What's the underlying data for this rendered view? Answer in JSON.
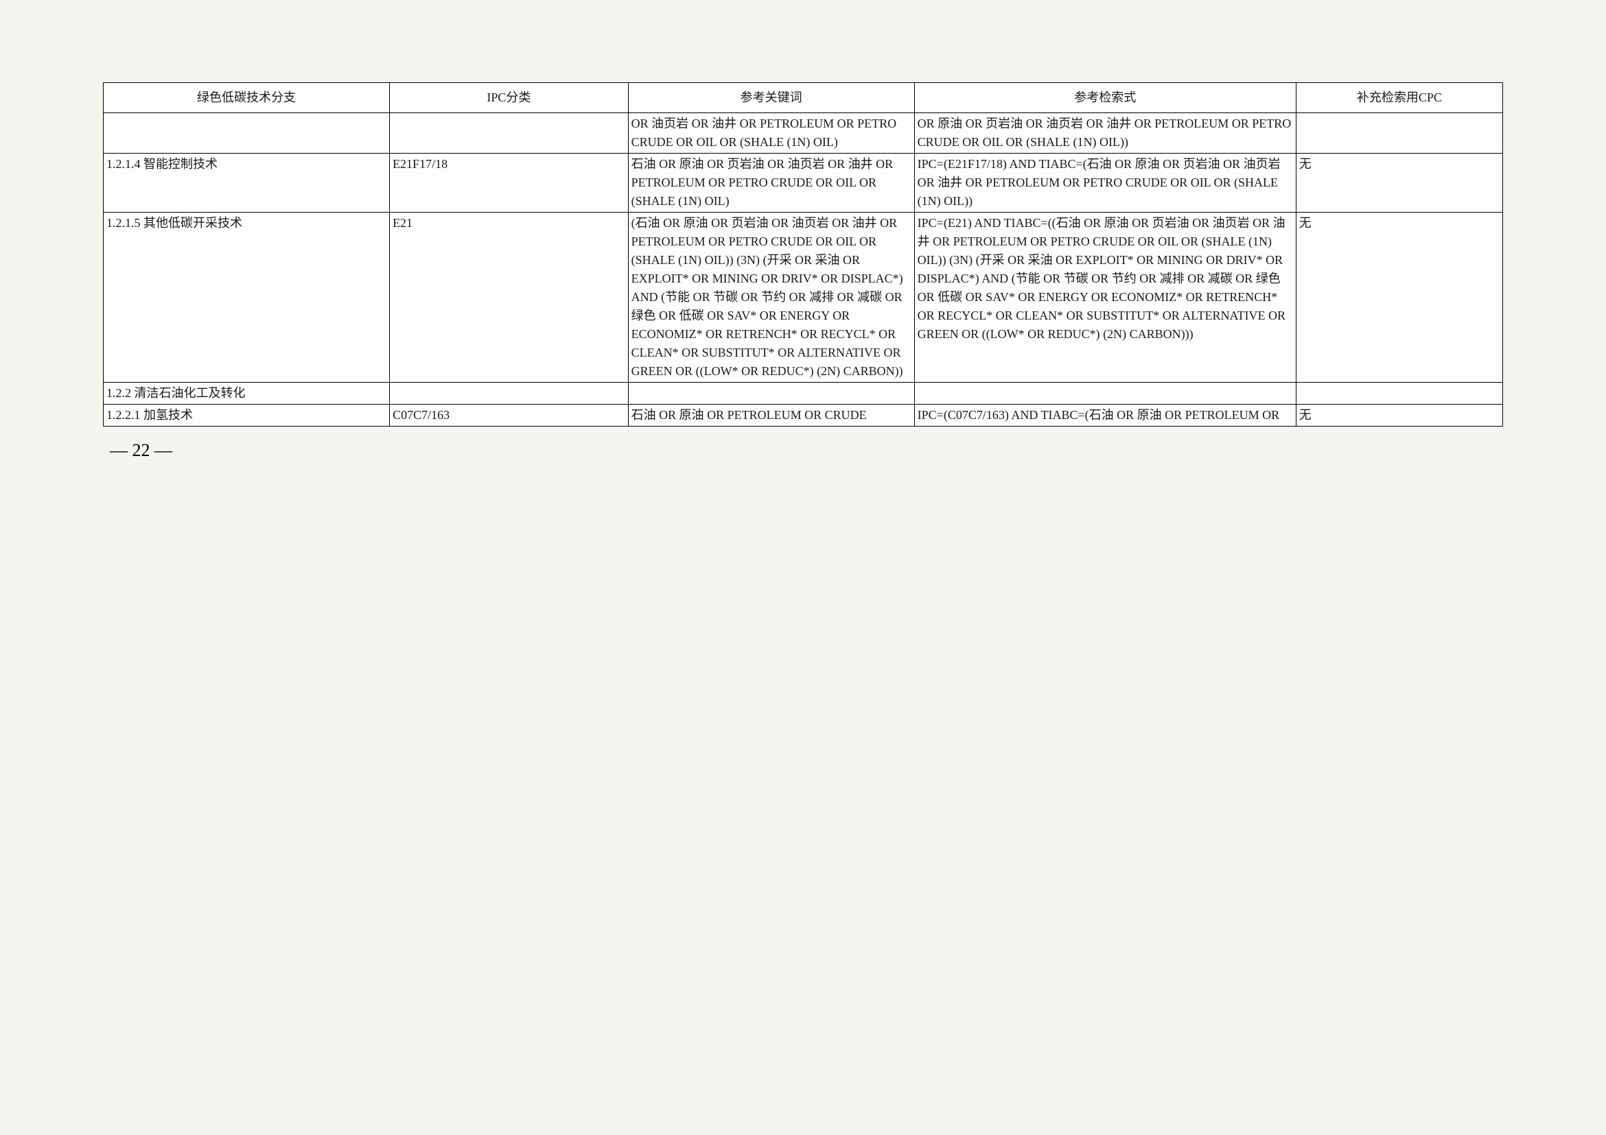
{
  "table": {
    "headers": [
      "绿色低碳技术分支",
      "IPC分类",
      "参考关键词",
      "参考检索式",
      "补充检索用CPC"
    ],
    "rows": [
      {
        "c1": "",
        "c2": "",
        "c3": "OR 油页岩 OR 油井 OR PETROLEUM OR PETRO CRUDE OR OIL OR (SHALE (1N) OIL)",
        "c4": "OR 原油 OR 页岩油 OR 油页岩 OR 油井 OR PETROLEUM OR PETRO CRUDE OR OIL OR (SHALE (1N) OIL))",
        "c5": ""
      },
      {
        "c1": "1.2.1.4  智能控制技术",
        "c2": "E21F17/18",
        "c3": "石油 OR 原油 OR 页岩油 OR 油页岩 OR 油井 OR PETROLEUM OR PETRO CRUDE OR OIL OR (SHALE (1N) OIL)",
        "c4": "IPC=(E21F17/18) AND TIABC=(石油 OR 原油 OR 页岩油 OR 油页岩 OR 油井 OR PETROLEUM OR PETRO CRUDE OR OIL OR (SHALE (1N) OIL))",
        "c5": "无"
      },
      {
        "c1": "1.2.1.5  其他低碳开采技术",
        "c2": "E21",
        "c3": "(石油 OR 原油 OR 页岩油 OR 油页岩 OR 油井 OR PETROLEUM OR PETRO CRUDE OR OIL OR (SHALE (1N) OIL)) (3N) (开采 OR 采油 OR EXPLOIT* OR MINING OR DRIV* OR DISPLAC*) AND (节能 OR 节碳 OR 节约 OR 减排 OR 减碳 OR 绿色 OR 低碳 OR SAV* OR ENERGY OR ECONOMIZ* OR RETRENCH* OR RECYCL* OR CLEAN* OR SUBSTITUT* OR ALTERNATIVE OR GREEN OR ((LOW* OR REDUC*) (2N) CARBON))",
        "c4": "IPC=(E21) AND TIABC=((石油 OR 原油 OR 页岩油 OR 油页岩 OR 油井 OR PETROLEUM OR PETRO CRUDE OR OIL OR (SHALE (1N) OIL)) (3N) (开采 OR 采油 OR EXPLOIT* OR MINING OR DRIV* OR DISPLAC*) AND (节能 OR 节碳 OR 节约 OR 减排 OR 减碳 OR 绿色 OR 低碳 OR SAV* OR ENERGY OR ECONOMIZ* OR RETRENCH* OR RECYCL* OR CLEAN* OR SUBSTITUT* OR ALTERNATIVE OR GREEN OR ((LOW* OR REDUC*) (2N) CARBON)))",
        "c5": "无"
      },
      {
        "c1": "1.2.2  清洁石油化工及转化",
        "c2": "",
        "c3": "",
        "c4": "",
        "c5": ""
      },
      {
        "c1": "1.2.2.1  加氢技术",
        "c2": "C07C7/163",
        "c3": "石油 OR 原油 OR PETROLEUM OR CRUDE",
        "c4": "IPC=(C07C7/163) AND TIABC=(石油 OR 原油 OR PETROLEUM OR",
        "c5": "无"
      }
    ]
  },
  "pageNumber": "—  22  —"
}
